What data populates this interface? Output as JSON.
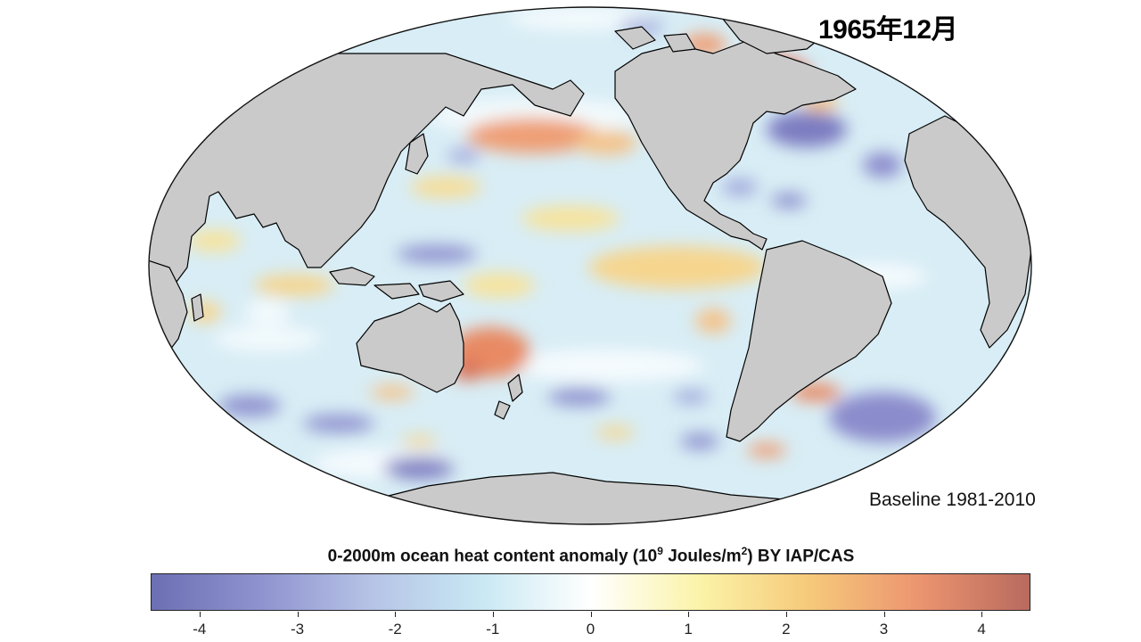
{
  "header": {
    "date_title": "1965年12月"
  },
  "annotation": {
    "baseline_text": "Baseline 1981-2010"
  },
  "colorbar": {
    "title_main": "0-2000m ocean heat content anomaly (10",
    "title_sup1": "9",
    "title_mid": " Joules/m",
    "title_sup2": "2",
    "title_end": ") BY IAP/CAS",
    "range": [
      -4.5,
      4.5
    ],
    "ticks": [
      {
        "value": -4,
        "label": "-4"
      },
      {
        "value": -3,
        "label": "-3"
      },
      {
        "value": -2,
        "label": "-2"
      },
      {
        "value": -1,
        "label": "-1"
      },
      {
        "value": 0,
        "label": "0"
      },
      {
        "value": 1,
        "label": "1"
      },
      {
        "value": 2,
        "label": "2"
      },
      {
        "value": 3,
        "label": "3"
      },
      {
        "value": 4,
        "label": "4"
      }
    ],
    "colors": [
      "#6c6fb3",
      "#8f93cf",
      "#b6c3e6",
      "#c8e8f3",
      "#ffffff",
      "#fbf3a8",
      "#f6c97a",
      "#ec9470",
      "#b86a5e"
    ]
  },
  "map": {
    "projection": "hammer-pacific-centered",
    "land_color": "#cacaca",
    "ocean_base_color": "#d9eef6",
    "anomaly_regions": [
      {
        "region": "North Pacific warm band",
        "color": "#ef9f74"
      },
      {
        "region": "North Atlantic warm patch",
        "color": "#e26f55"
      },
      {
        "region": "Northwest Atlantic cold patch",
        "color": "#7b7cc1"
      },
      {
        "region": "Equatorial Pacific warm band",
        "color": "#f6d58e"
      },
      {
        "region": "Coral Sea warm patch",
        "color": "#e88a64"
      },
      {
        "region": "South Atlantic cold patch",
        "color": "#8b8ccc"
      },
      {
        "region": "Southern Ocean cold patches",
        "color": "#8a8cd0"
      }
    ]
  }
}
